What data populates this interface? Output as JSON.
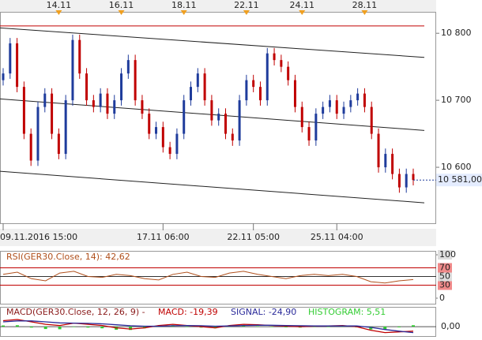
{
  "chart_data": [
    {
      "type": "candlestick",
      "categories": [
        null,
        null,
        null,
        null,
        null,
        null,
        null,
        null,
        "14.11",
        null,
        null,
        null,
        null,
        null,
        null,
        null,
        null,
        "16.11",
        null,
        null,
        null,
        null,
        null,
        null,
        null,
        null,
        "18.11",
        null,
        null,
        null,
        null,
        null,
        null,
        null,
        null,
        "22.11",
        null,
        null,
        null,
        null,
        null,
        null,
        null,
        "24.11",
        null,
        null,
        null,
        null,
        null,
        null,
        null,
        null,
        "28.11",
        null,
        null,
        null,
        null,
        null,
        null,
        null
      ],
      "bottom_labels": [
        "09.11.2016 15:00",
        null,
        null,
        null,
        null,
        null,
        null,
        null,
        null,
        null,
        null,
        null,
        null,
        null,
        null,
        null,
        null,
        null,
        null,
        null,
        null,
        null,
        null,
        "17.11 06:00",
        null,
        null,
        null,
        null,
        null,
        null,
        null,
        null,
        null,
        null,
        null,
        null,
        "22.11 05:00",
        null,
        null,
        null,
        null,
        null,
        null,
        null,
        null,
        null,
        null,
        null,
        "25.11 04:00",
        null,
        null,
        null,
        null,
        null,
        null,
        null,
        null,
        null,
        null,
        null
      ],
      "open": [
        10730,
        10740,
        10785,
        10720,
        10650,
        10610,
        10690,
        10710,
        10650,
        10620,
        10700,
        10790,
        10740,
        10700,
        10690,
        10710,
        10680,
        10700,
        10740,
        10760,
        10700,
        10680,
        10650,
        10660,
        10630,
        10620,
        10650,
        10700,
        10720,
        10740,
        10700,
        10670,
        10680,
        10650,
        10640,
        10700,
        10730,
        10720,
        10700,
        10770,
        10760,
        10750,
        10730,
        10690,
        10660,
        10640,
        10680,
        10690,
        10700,
        10680,
        10690,
        10700,
        10710,
        10690,
        10650,
        10600,
        10620,
        10590,
        10570,
        10590
      ],
      "high": [
        10748,
        10793,
        10793,
        10728,
        10658,
        10698,
        10718,
        10718,
        10658,
        10708,
        10798,
        10798,
        10748,
        10708,
        10718,
        10718,
        10708,
        10748,
        10768,
        10768,
        10708,
        10688,
        10668,
        10668,
        10638,
        10658,
        10708,
        10728,
        10748,
        10748,
        10708,
        10688,
        10688,
        10658,
        10708,
        10738,
        10738,
        10728,
        10778,
        10778,
        10768,
        10758,
        10738,
        10698,
        10668,
        10688,
        10698,
        10708,
        10708,
        10698,
        10708,
        10718,
        10718,
        10698,
        10658,
        10628,
        10628,
        10598,
        10598,
        10598
      ],
      "low": [
        10722,
        10732,
        10712,
        10642,
        10602,
        10602,
        10682,
        10642,
        10612,
        10612,
        10692,
        10732,
        10692,
        10682,
        10682,
        10672,
        10672,
        10692,
        10732,
        10692,
        10672,
        10642,
        10642,
        10622,
        10612,
        10612,
        10642,
        10692,
        10712,
        10692,
        10662,
        10662,
        10642,
        10632,
        10632,
        10692,
        10712,
        10692,
        10692,
        10752,
        10742,
        10722,
        10682,
        10652,
        10632,
        10632,
        10672,
        10682,
        10672,
        10672,
        10682,
        10692,
        10682,
        10642,
        10592,
        10592,
        10582,
        10562,
        10562,
        10573
      ],
      "close": [
        10740,
        10785,
        10720,
        10650,
        10610,
        10690,
        10710,
        10650,
        10620,
        10700,
        10790,
        10740,
        10700,
        10690,
        10710,
        10680,
        10700,
        10740,
        10760,
        10700,
        10680,
        10650,
        10660,
        10630,
        10620,
        10650,
        10700,
        10720,
        10740,
        10700,
        10670,
        10680,
        10650,
        10640,
        10700,
        10730,
        10720,
        10700,
        10770,
        10760,
        10750,
        10730,
        10690,
        10660,
        10640,
        10680,
        10690,
        10700,
        10680,
        10690,
        10700,
        10710,
        10690,
        10650,
        10600,
        10620,
        10590,
        10570,
        10590,
        10581
      ],
      "up_color": "#1f3c9c",
      "down_color": "#c00000",
      "ylim": [
        10520,
        10832
      ],
      "yticks": [
        {
          "value": 10600,
          "label": "10 600"
        },
        {
          "value": 10700,
          "label": "10 700"
        },
        {
          "value": 10800,
          "label": "10 800"
        }
      ],
      "channel": {
        "upper": [
          10808,
          10764
        ],
        "middle": [
          10702,
          10655
        ],
        "lower": [
          10594,
          10547
        ]
      },
      "resistance": 10811,
      "last_price": 10581,
      "last_price_label": "10 581,00"
    },
    {
      "type": "line",
      "title": "RSI(GER30.Close, 14): 42,62",
      "color": "#b0501c",
      "values": [
        55,
        60,
        45,
        40,
        58,
        62,
        50,
        48,
        55,
        52,
        45,
        42,
        55,
        60,
        50,
        48,
        58,
        62,
        55,
        50,
        45,
        52,
        55,
        52,
        55,
        50,
        38,
        35,
        40,
        43
      ],
      "ylim": [
        0,
        100
      ],
      "yticks": [
        0,
        30,
        50,
        70,
        100
      ]
    },
    {
      "type": "macd",
      "title_parts": [
        "MACD(GER30.Close, 12, 26, 9) -",
        "MACD: -19,39",
        "SIGNAL: -24,90",
        "HISTOGRAM: 5,51"
      ],
      "series": [
        {
          "name": "MACD",
          "color": "#c00000",
          "values": [
            25,
            30,
            20,
            10,
            5,
            15,
            10,
            5,
            -5,
            -10,
            -5,
            5,
            10,
            5,
            0,
            -5,
            5,
            10,
            8,
            5,
            2,
            0,
            2,
            3,
            5,
            0,
            -15,
            -25,
            -22,
            -19
          ]
        },
        {
          "name": "SIGNAL",
          "color": "#2a2a9a",
          "values": [
            20,
            24,
            24,
            20,
            16,
            15,
            14,
            12,
            8,
            4,
            2,
            2,
            4,
            5,
            4,
            2,
            3,
            5,
            6,
            6,
            5,
            4,
            3,
            3,
            3,
            3,
            -3,
            -12,
            -19,
            -25
          ]
        },
        {
          "name": "HISTOGRAM",
          "color": "#33cc33",
          "values": [
            5,
            6,
            -4,
            -10,
            -11,
            0,
            -4,
            -7,
            -13,
            -14,
            -7,
            3,
            6,
            0,
            -4,
            -7,
            2,
            5,
            2,
            -1,
            -3,
            -4,
            -1,
            0,
            2,
            -3,
            -12,
            -13,
            -3,
            6
          ]
        }
      ],
      "ylim": [
        -43,
        80
      ],
      "yticks": [
        {
          "value": 0,
          "label": "0,00"
        }
      ]
    }
  ]
}
